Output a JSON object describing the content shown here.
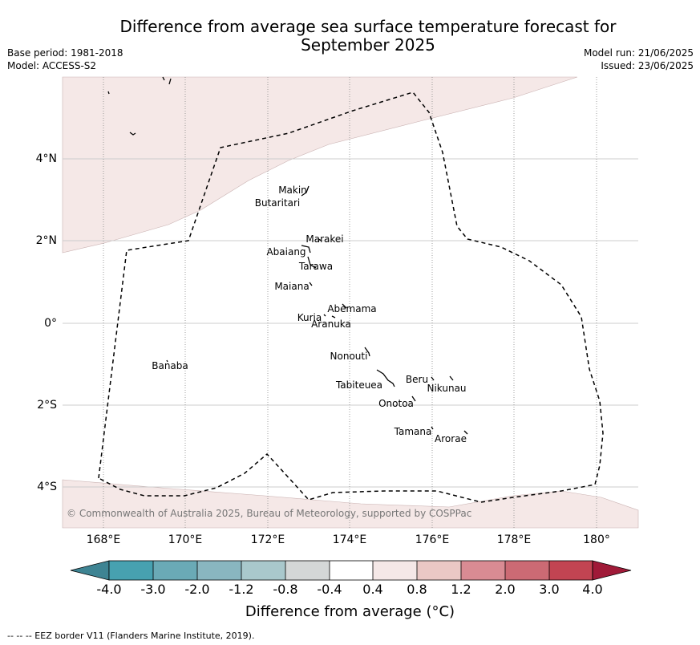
{
  "title": "Difference from average sea surface temperature forecast for September 2025",
  "title_line1": "Difference from average sea surface temperature forecast for",
  "title_line2": "September 2025",
  "base_period": "Base period: 1981-2018",
  "model": "Model: ACCESS-S2",
  "model_run": "Model run: 21/06/2025",
  "issued": "Issued: 23/06/2025",
  "axes": {
    "lat_labels": [
      "4°N",
      "2°N",
      "0°",
      "2°S",
      "4°S"
    ],
    "lon_labels": [
      "168°E",
      "170°E",
      "172°E",
      "174°E",
      "176°E",
      "178°E",
      "180°"
    ]
  },
  "islands": [
    "Makin",
    "Butaritari",
    "Marakei",
    "Abaiang",
    "Tarawa",
    "Maiana",
    "Abemama",
    "Kuria",
    "Aranuka",
    "Nonouti",
    "Banaba",
    "Beru",
    "Nikunau",
    "Tabiteuea",
    "Onotoa",
    "Tamana",
    "Arorae"
  ],
  "copyright": "© Commonwealth of Australia 2025, Bureau of Meteorology, supported by COSPPac",
  "colorbar": {
    "ticks": [
      "-4.0",
      "-3.0",
      "-2.0",
      "-1.2",
      "-0.8",
      "-0.4",
      "0.4",
      "0.8",
      "1.2",
      "2.0",
      "3.0",
      "4.0"
    ],
    "colors": [
      "#3e8493",
      "#47a1b0",
      "#6aaab6",
      "#89b6c0",
      "#a9c8cc",
      "#d4d7d7",
      "#ffffff",
      "#f5e8e7",
      "#eac8c5",
      "#d98b93",
      "#cc6a74",
      "#c24452",
      "#a01a38"
    ],
    "label": "Difference from average (°C)",
    "label_text": "Difference from average (",
    "label_unit": "°C",
    "label_end": ")"
  },
  "map_colors": {
    "warm_shade": "#f5e8e7",
    "eez_border": "#000000",
    "grid": "#cccccc"
  },
  "footnote": "--  --  -- EEZ border V11 (Flanders Marine Institute, 2019)."
}
